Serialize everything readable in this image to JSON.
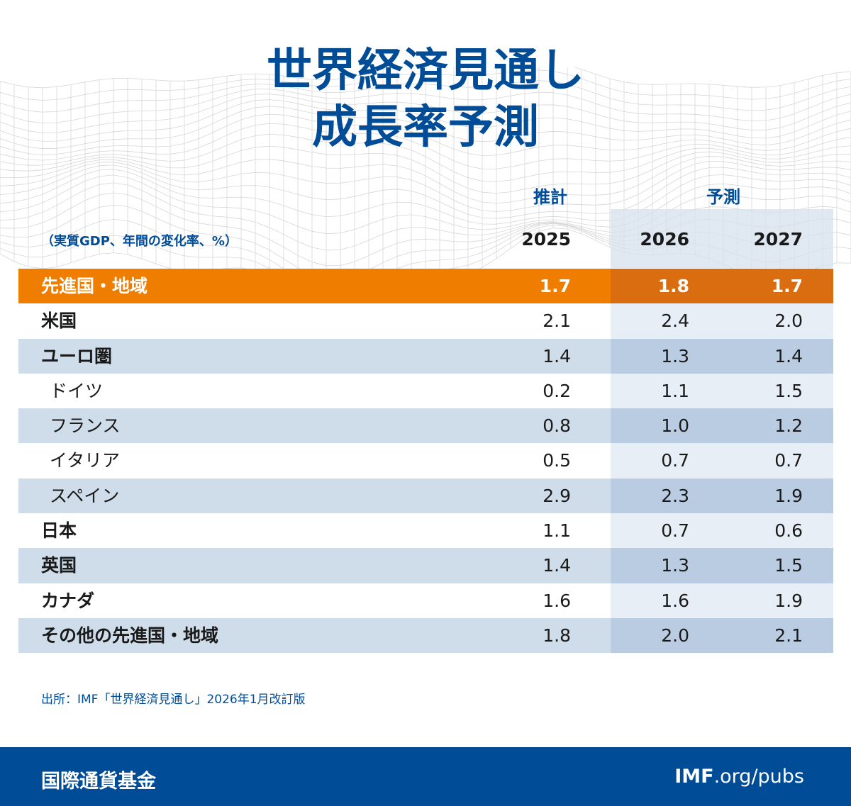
{
  "title": {
    "line1": "世界経済見通し",
    "line2": "成長率予測"
  },
  "headers": {
    "estimate": "推計",
    "forecast": "予測",
    "unit": "（実質GDP、年間の変化率、%）",
    "years": [
      "2025",
      "2026",
      "2027"
    ]
  },
  "chart_data": {
    "type": "table",
    "title": "世界経済見通し 成長率予測",
    "columns": [
      "2025",
      "2026",
      "2027"
    ],
    "column_groups": [
      {
        "label": "推計",
        "columns": [
          "2025"
        ]
      },
      {
        "label": "予測",
        "columns": [
          "2026",
          "2027"
        ]
      }
    ],
    "rows": [
      {
        "label": "先進国・地域",
        "values": [
          "1.7",
          "1.8",
          "1.7"
        ]
      },
      {
        "label": "米国",
        "values": [
          "2.1",
          "2.4",
          "2.0"
        ]
      },
      {
        "label": "ユーロ圏",
        "values": [
          "1.4",
          "1.3",
          "1.4"
        ]
      },
      {
        "label": "ドイツ",
        "values": [
          "0.2",
          "1.1",
          "1.5"
        ]
      },
      {
        "label": "フランス",
        "values": [
          "0.8",
          "1.0",
          "1.2"
        ]
      },
      {
        "label": "イタリア",
        "values": [
          "0.5",
          "0.7",
          "0.7"
        ]
      },
      {
        "label": "スペイン",
        "values": [
          "2.9",
          "2.3",
          "1.9"
        ]
      },
      {
        "label": "日本",
        "values": [
          "1.1",
          "0.7",
          "0.6"
        ]
      },
      {
        "label": "英国",
        "values": [
          "1.4",
          "1.3",
          "1.5"
        ]
      },
      {
        "label": "カナダ",
        "values": [
          "1.6",
          "1.6",
          "1.9"
        ]
      },
      {
        "label": "その他の先進国・地域",
        "values": [
          "1.8",
          "2.0",
          "2.1"
        ]
      }
    ]
  },
  "source": "出所：IMF「世界経済見通し」2026年1月改訂版",
  "footer": {
    "org": "国際通貨基金",
    "url_bold": "IMF",
    "url_rest": ".org/pubs"
  },
  "colors": {
    "brand_blue": "#004c97",
    "highlight_orange": "#ef7d00",
    "row_blue": "#cfdcea"
  }
}
